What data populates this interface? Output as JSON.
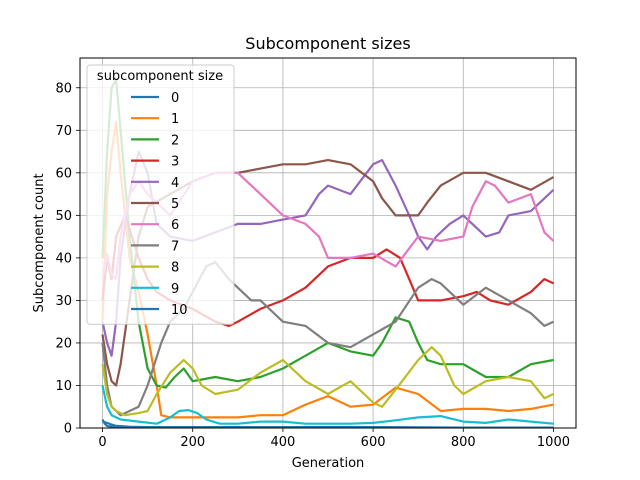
{
  "chart_data": {
    "type": "line",
    "title": "Subcomponent sizes",
    "xlabel": "Generation",
    "ylabel": "Subcomponent count",
    "xlim": [
      -50,
      1050
    ],
    "ylim": [
      0,
      87
    ],
    "xticks": [
      0,
      200,
      400,
      600,
      800,
      1000
    ],
    "yticks": [
      0,
      10,
      20,
      30,
      40,
      50,
      60,
      70,
      80
    ],
    "grid": true,
    "legend": {
      "title": "subcomponent size",
      "placement": "upper-left"
    },
    "series": [
      {
        "name": "0",
        "color": "#1f77b4",
        "x": [
          0,
          5,
          10,
          20,
          40,
          80,
          200,
          400,
          600,
          800,
          1000
        ],
        "y": [
          2,
          1,
          0.5,
          0.3,
          0.2,
          0.1,
          0.1,
          0.1,
          0.1,
          0.1,
          0.1
        ]
      },
      {
        "name": "1",
        "color": "#ff7f0e",
        "x": [
          0,
          10,
          20,
          30,
          40,
          60,
          80,
          100,
          120,
          130,
          150,
          200,
          250,
          300,
          350,
          400,
          450,
          500,
          550,
          600,
          650,
          700,
          750,
          800,
          850,
          900,
          950,
          1000
        ],
        "y": [
          25,
          55,
          65,
          72,
          60,
          40,
          32,
          22,
          10,
          3,
          2.5,
          2.5,
          2.5,
          2.5,
          3,
          3,
          5.5,
          7.5,
          5,
          5.5,
          9.5,
          8,
          4,
          4.5,
          4.5,
          4,
          4.5,
          5.5
        ]
      },
      {
        "name": "2",
        "color": "#2ca02c",
        "x": [
          0,
          10,
          20,
          30,
          40,
          60,
          80,
          100,
          120,
          140,
          160,
          180,
          200,
          250,
          300,
          350,
          400,
          450,
          500,
          550,
          600,
          620,
          650,
          680,
          700,
          720,
          750,
          800,
          850,
          900,
          950,
          1000
        ],
        "y": [
          40,
          65,
          80,
          82,
          70,
          45,
          25,
          14,
          10,
          9.5,
          12,
          14,
          11,
          12,
          11,
          12,
          14,
          17,
          20,
          18,
          17,
          20,
          26,
          25,
          20,
          16,
          15,
          15,
          12,
          12,
          15,
          16
        ]
      },
      {
        "name": "3",
        "color": "#d62728",
        "x": [
          0,
          10,
          20,
          30,
          50,
          80,
          100,
          120,
          150,
          200,
          250,
          280,
          300,
          350,
          400,
          450,
          500,
          550,
          600,
          630,
          660,
          680,
          700,
          750,
          800,
          830,
          860,
          900,
          950,
          980,
          1000
        ],
        "y": [
          30,
          40,
          35,
          45,
          50,
          40,
          35,
          32,
          30,
          28,
          25,
          24,
          25,
          28,
          30,
          33,
          38,
          40,
          40,
          42,
          40,
          35,
          30,
          30,
          31,
          32,
          30,
          29,
          32,
          35,
          34
        ]
      },
      {
        "name": "4",
        "color": "#9467bd",
        "x": [
          0,
          10,
          20,
          30,
          40,
          60,
          80,
          100,
          120,
          150,
          200,
          250,
          300,
          350,
          400,
          450,
          480,
          500,
          550,
          600,
          620,
          650,
          680,
          700,
          720,
          740,
          770,
          800,
          850,
          880,
          900,
          950,
          1000
        ],
        "y": [
          25,
          20,
          17,
          25,
          40,
          55,
          65,
          60,
          48,
          45,
          44,
          46,
          48,
          48,
          49,
          50,
          55,
          57,
          55,
          62,
          63,
          57,
          50,
          45,
          42,
          45,
          48,
          50,
          45,
          46,
          50,
          51,
          56
        ]
      },
      {
        "name": "5",
        "color": "#8c564b",
        "x": [
          0,
          10,
          20,
          30,
          40,
          60,
          80,
          100,
          150,
          200,
          250,
          300,
          350,
          400,
          450,
          500,
          550,
          600,
          620,
          650,
          700,
          720,
          750,
          800,
          850,
          900,
          950,
          1000
        ],
        "y": [
          22,
          15,
          11,
          10,
          15,
          30,
          45,
          52,
          55,
          58,
          60,
          60,
          61,
          62,
          62,
          63,
          62,
          58,
          54,
          50,
          50,
          53,
          57,
          60,
          60,
          58,
          56,
          59
        ]
      },
      {
        "name": "6",
        "color": "#e377c2",
        "x": [
          0,
          10,
          20,
          30,
          40,
          60,
          80,
          100,
          150,
          200,
          250,
          300,
          330,
          350,
          400,
          450,
          480,
          500,
          550,
          600,
          650,
          700,
          750,
          800,
          820,
          850,
          870,
          900,
          950,
          980,
          1000
        ],
        "y": [
          35,
          41,
          36,
          35,
          45,
          55,
          58,
          55,
          50,
          58,
          60,
          60,
          57,
          55,
          50,
          48,
          45,
          40,
          40,
          41,
          38,
          45,
          44,
          45,
          52,
          58,
          57,
          53,
          55,
          46,
          44
        ]
      },
      {
        "name": "7",
        "color": "#7f7f7f",
        "x": [
          0,
          10,
          20,
          30,
          40,
          60,
          80,
          100,
          130,
          150,
          180,
          200,
          230,
          250,
          280,
          300,
          330,
          350,
          380,
          400,
          450,
          500,
          550,
          600,
          650,
          700,
          730,
          750,
          800,
          850,
          900,
          950,
          980,
          1000
        ],
        "y": [
          20,
          10,
          5,
          4,
          3,
          4,
          5,
          10,
          20,
          25,
          28,
          32,
          38,
          39,
          35,
          33,
          30,
          30,
          27,
          25,
          24,
          20,
          19,
          22,
          25,
          33,
          35,
          34,
          29,
          33,
          30,
          27,
          24,
          25
        ]
      },
      {
        "name": "8",
        "color": "#bcbd22",
        "x": [
          0,
          10,
          20,
          30,
          50,
          80,
          100,
          120,
          150,
          180,
          200,
          220,
          250,
          300,
          350,
          400,
          450,
          500,
          550,
          600,
          620,
          650,
          700,
          730,
          750,
          780,
          800,
          850,
          900,
          950,
          980,
          1000
        ],
        "y": [
          15,
          8,
          5,
          4,
          3,
          3.5,
          4,
          8,
          13,
          16,
          14,
          10,
          8,
          9,
          13,
          16,
          11,
          8,
          11,
          6,
          5,
          9,
          16,
          19,
          17,
          10,
          8,
          11,
          12,
          11,
          7,
          8
        ]
      },
      {
        "name": "9",
        "color": "#17becf",
        "x": [
          0,
          10,
          20,
          40,
          80,
          120,
          150,
          170,
          190,
          210,
          230,
          260,
          300,
          350,
          400,
          450,
          500,
          550,
          600,
          650,
          700,
          750,
          800,
          850,
          900,
          950,
          1000
        ],
        "y": [
          10,
          5,
          3,
          2,
          1.5,
          1,
          2.5,
          4,
          4.2,
          3.5,
          2,
          1,
          1,
          1.5,
          1.5,
          1,
          1,
          1,
          1.2,
          1.8,
          2.5,
          2.8,
          1.5,
          1.2,
          2,
          1.5,
          1
        ]
      },
      {
        "name": "10",
        "color": "#1f77b4",
        "x": [
          0,
          10,
          20,
          30,
          60,
          100,
          200,
          400,
          600,
          800,
          1000
        ],
        "y": [
          1.5,
          1.2,
          0.8,
          0.5,
          0.3,
          0.2,
          0.2,
          0.2,
          0.2,
          0.1,
          0.1
        ]
      }
    ]
  }
}
